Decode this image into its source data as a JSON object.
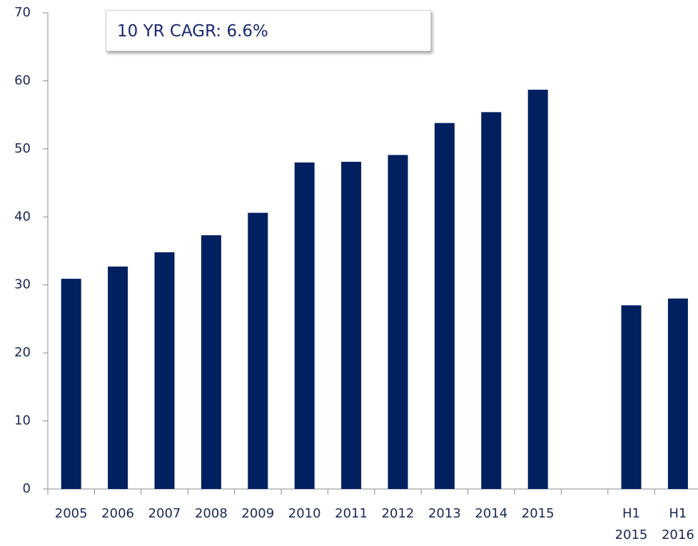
{
  "chart_data": {
    "type": "bar",
    "annotation": "10 YR CAGR: 6.6%",
    "categories": [
      "2005",
      "2006",
      "2007",
      "2008",
      "2009",
      "2010",
      "2011",
      "2012",
      "2013",
      "2014",
      "2015",
      null,
      "H1\n2015",
      "H1\n2016"
    ],
    "values": [
      30.9,
      32.7,
      34.8,
      37.3,
      40.6,
      48.0,
      48.1,
      49.1,
      53.8,
      55.4,
      58.7,
      null,
      27.0,
      28.0
    ],
    "color": "#002060",
    "ylim": [
      0,
      70
    ],
    "yticks": [
      0,
      10,
      20,
      30,
      40,
      50,
      60,
      70
    ],
    "grid": false
  }
}
